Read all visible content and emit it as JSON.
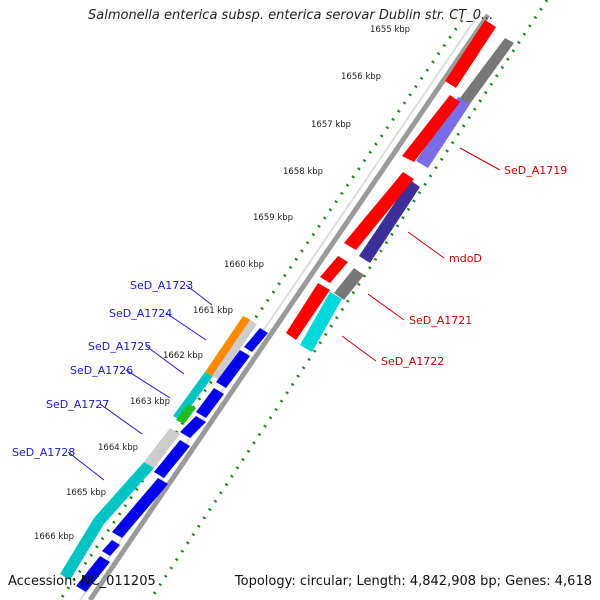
{
  "title": "Salmonella enterica subsp. enterica serovar Dublin str. CT_0...",
  "footer": {
    "accession": "Accession: NC_011205",
    "info": "Topology: circular; Length: 4,842,908 bp; Genes: 4,618"
  },
  "ticks": [
    "1655 kbp",
    "1656 kbp",
    "1657 kbp",
    "1658 kbp",
    "1659 kbp",
    "1660 kbp",
    "1661 kbp",
    "1662 kbp",
    "1663 kbp",
    "1664 kbp",
    "1665 kbp",
    "1666 kbp"
  ],
  "gene_labels_right": [
    "SeD_A1719",
    "mdoD",
    "SeD_A1721",
    "SeD_A1722"
  ],
  "gene_labels_left": [
    "SeD_A1723",
    "SeD_A1724",
    "SeD_A1725",
    "SeD_A1726",
    "SeD_A1727",
    "SeD_A1728"
  ],
  "colors": {
    "cds_red": "#ff0000",
    "cds_blue": "#0000ee",
    "gray_feature": "#777777",
    "cyan_feature": "#00d8dc",
    "purple_feature": "#7a6ee8",
    "darkpurple_feature": "#3c2f9a",
    "orange_feature": "#ff8a00",
    "green_feature": "#22bb22",
    "tick_green": "#1a8a1a",
    "label_red": "#cc0000",
    "label_blue": "#1a1acc"
  }
}
